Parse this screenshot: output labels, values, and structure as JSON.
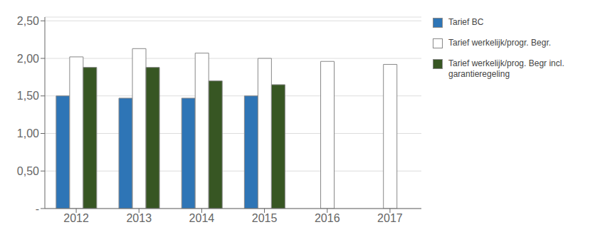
{
  "chart_data": {
    "type": "bar",
    "categories": [
      "2012",
      "2013",
      "2014",
      "2015",
      "2016",
      "2017"
    ],
    "series": [
      {
        "name": "Tarief BC",
        "color": "#2E75B6",
        "values": [
          1.5,
          1.47,
          1.47,
          1.5,
          null,
          null
        ]
      },
      {
        "name": "Tarief werkelijk/progr. Begr.",
        "color": "#FFFFFF",
        "values": [
          2.02,
          2.13,
          2.07,
          2.0,
          1.96,
          1.92
        ]
      },
      {
        "name": "Tarief werkelijk/prog. Begr incl.\ngarantieregeling",
        "color": "#375623",
        "values": [
          1.88,
          1.88,
          1.7,
          1.65,
          null,
          null
        ]
      }
    ],
    "ylim": [
      0,
      2.55
    ],
    "yticks": [
      {
        "value": 0.0,
        "label": "-"
      },
      {
        "value": 0.5,
        "label": "0,50"
      },
      {
        "value": 1.0,
        "label": "1,00"
      },
      {
        "value": 1.5,
        "label": "1,50"
      },
      {
        "value": 2.0,
        "label": "2,00"
      },
      {
        "value": 2.5,
        "label": "2,50"
      }
    ],
    "grid": true,
    "legend": "right"
  }
}
